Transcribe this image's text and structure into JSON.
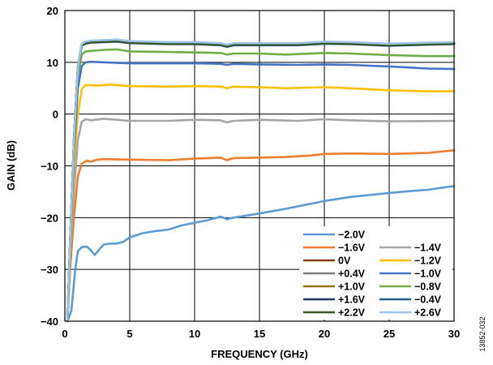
{
  "chart_data": {
    "type": "line",
    "xlabel": "FREQUENCY (GHz)",
    "ylabel": "GAIN (dB)",
    "xlim": [
      0,
      30
    ],
    "ylim": [
      -40,
      20
    ],
    "x_ticks": [
      "0",
      "5",
      "10",
      "15",
      "20",
      "25",
      "30"
    ],
    "y_ticks": [
      "20",
      "10",
      "0",
      "−10",
      "−20",
      "−30",
      "−40"
    ],
    "grid": true,
    "legend_position": "bottom-right",
    "figure_id": "13852-032",
    "series": [
      {
        "name": "−2.0V",
        "color": "#5b9bd5",
        "points": [
          [
            0.2,
            -40
          ],
          [
            0.5,
            -38
          ],
          [
            0.8,
            -30
          ],
          [
            1,
            -26.5
          ],
          [
            1.3,
            -25.7
          ],
          [
            1.7,
            -25.6
          ],
          [
            2,
            -26.3
          ],
          [
            2.3,
            -27.2
          ],
          [
            2.7,
            -26
          ],
          [
            3,
            -25.2
          ],
          [
            3.5,
            -25
          ],
          [
            4,
            -25
          ],
          [
            4.5,
            -24.7
          ],
          [
            5,
            -23.8
          ],
          [
            6,
            -23
          ],
          [
            7,
            -22.6
          ],
          [
            8,
            -22.3
          ],
          [
            9,
            -21.5
          ],
          [
            10,
            -21
          ],
          [
            11,
            -20.5
          ],
          [
            12,
            -19.8
          ],
          [
            12.5,
            -20.3
          ],
          [
            13,
            -20
          ],
          [
            14,
            -19.6
          ],
          [
            15,
            -19.2
          ],
          [
            17,
            -18.3
          ],
          [
            19,
            -17.3
          ],
          [
            20,
            -16.8
          ],
          [
            22,
            -16
          ],
          [
            24,
            -15.5
          ],
          [
            26,
            -15
          ],
          [
            28,
            -14.6
          ],
          [
            30,
            -13.9
          ]
        ]
      },
      {
        "name": "−1.6V",
        "color": "#ed7d31",
        "points": [
          [
            0.2,
            -40
          ],
          [
            0.4,
            -30
          ],
          [
            0.7,
            -20
          ],
          [
            1,
            -12
          ],
          [
            1.3,
            -9.6
          ],
          [
            1.7,
            -9
          ],
          [
            2,
            -9.2
          ],
          [
            2.5,
            -8.8
          ],
          [
            3,
            -8.7
          ],
          [
            5,
            -8.8
          ],
          [
            8,
            -8.9
          ],
          [
            10,
            -8.6
          ],
          [
            12,
            -8.4
          ],
          [
            12.5,
            -8.9
          ],
          [
            13,
            -8.5
          ],
          [
            15,
            -8.4
          ],
          [
            17,
            -8.3
          ],
          [
            19,
            -8
          ],
          [
            20,
            -7.7
          ],
          [
            22,
            -7.6
          ],
          [
            25,
            -7.7
          ],
          [
            28,
            -7.5
          ],
          [
            30,
            -7
          ]
        ]
      },
      {
        "name": "−1.4V",
        "color": "#a5a5a5",
        "points": [
          [
            0.2,
            -40
          ],
          [
            0.4,
            -28
          ],
          [
            0.7,
            -15
          ],
          [
            1,
            -5
          ],
          [
            1.3,
            -1.5
          ],
          [
            1.6,
            -1
          ],
          [
            2,
            -1.2
          ],
          [
            3,
            -0.9
          ],
          [
            5,
            -1.3
          ],
          [
            8,
            -1.3
          ],
          [
            10,
            -1.1
          ],
          [
            12,
            -1.2
          ],
          [
            12.5,
            -1.6
          ],
          [
            13,
            -1.3
          ],
          [
            15,
            -1.1
          ],
          [
            18,
            -1.3
          ],
          [
            20,
            -1
          ],
          [
            22,
            -1.2
          ],
          [
            25,
            -1.4
          ],
          [
            30,
            -1.3
          ]
        ]
      },
      {
        "name": "0V",
        "color": "#843c0c",
        "points": [
          [
            0.2,
            -40
          ],
          [
            0.4,
            -25
          ],
          [
            0.7,
            -5
          ],
          [
            1,
            9
          ],
          [
            1.3,
            13.3
          ],
          [
            1.6,
            13.7
          ],
          [
            2,
            13.9
          ],
          [
            3,
            14
          ],
          [
            4,
            14.1
          ],
          [
            5,
            13.8
          ],
          [
            8,
            13.6
          ],
          [
            10,
            13.6
          ],
          [
            12,
            13.4
          ],
          [
            12.5,
            13.1
          ],
          [
            13,
            13.4
          ],
          [
            15,
            13.4
          ],
          [
            18,
            13.4
          ],
          [
            20,
            13.7
          ],
          [
            22,
            13.6
          ],
          [
            25,
            13.3
          ],
          [
            28,
            13.5
          ],
          [
            30,
            13.6
          ]
        ]
      },
      {
        "name": "−1.2V",
        "color": "#ffc000",
        "points": [
          [
            0.2,
            -40
          ],
          [
            0.4,
            -27
          ],
          [
            0.7,
            -10
          ],
          [
            1,
            0
          ],
          [
            1.3,
            4.8
          ],
          [
            1.6,
            5.6
          ],
          [
            2,
            5.6
          ],
          [
            2.5,
            5.5
          ],
          [
            3.5,
            5.7
          ],
          [
            5,
            5.4
          ],
          [
            8,
            5.3
          ],
          [
            10,
            5.4
          ],
          [
            12,
            5.3
          ],
          [
            12.5,
            5
          ],
          [
            13,
            5.3
          ],
          [
            15,
            5.2
          ],
          [
            17,
            5
          ],
          [
            20,
            5.2
          ],
          [
            22,
            5
          ],
          [
            25,
            4.6
          ],
          [
            28,
            4.4
          ],
          [
            30,
            4.4
          ]
        ]
      },
      {
        "name": "+0.4V",
        "color": "#7f7f7f",
        "points": [
          [
            0.2,
            -40
          ],
          [
            0.4,
            -25
          ],
          [
            0.7,
            -5
          ],
          [
            1,
            9
          ],
          [
            1.3,
            13.4
          ],
          [
            1.6,
            13.8
          ],
          [
            2,
            14
          ],
          [
            3,
            14.1
          ],
          [
            4,
            14.2
          ],
          [
            5,
            13.9
          ],
          [
            8,
            13.7
          ],
          [
            10,
            13.7
          ],
          [
            12,
            13.5
          ],
          [
            12.5,
            13.2
          ],
          [
            13,
            13.5
          ],
          [
            15,
            13.5
          ],
          [
            18,
            13.5
          ],
          [
            20,
            13.8
          ],
          [
            22,
            13.7
          ],
          [
            25,
            13.4
          ],
          [
            28,
            13.6
          ],
          [
            30,
            13.7
          ]
        ]
      },
      {
        "name": "−1.0V",
        "color": "#4472c4",
        "points": [
          [
            0.2,
            -40
          ],
          [
            0.4,
            -26
          ],
          [
            0.7,
            -7
          ],
          [
            1,
            5
          ],
          [
            1.3,
            9.3
          ],
          [
            1.6,
            10
          ],
          [
            2,
            10.1
          ],
          [
            3,
            10
          ],
          [
            5,
            9.8
          ],
          [
            8,
            9.8
          ],
          [
            10,
            9.8
          ],
          [
            12,
            9.7
          ],
          [
            12.5,
            9.5
          ],
          [
            13,
            9.7
          ],
          [
            15,
            9.6
          ],
          [
            18,
            9.5
          ],
          [
            20,
            9.6
          ],
          [
            22,
            9.5
          ],
          [
            25,
            9.2
          ],
          [
            28,
            8.8
          ],
          [
            30,
            8.7
          ]
        ]
      },
      {
        "name": "+1.0V",
        "color": "#997300",
        "points": [
          [
            0.2,
            -40
          ],
          [
            0.4,
            -25
          ],
          [
            0.7,
            -5
          ],
          [
            1,
            9
          ],
          [
            1.3,
            13.5
          ],
          [
            1.6,
            13.9
          ],
          [
            2,
            14.1
          ],
          [
            3,
            14.2
          ],
          [
            4,
            14.3
          ],
          [
            5,
            14
          ],
          [
            8,
            13.8
          ],
          [
            10,
            13.8
          ],
          [
            12,
            13.6
          ],
          [
            12.5,
            13.3
          ],
          [
            13,
            13.6
          ],
          [
            15,
            13.6
          ],
          [
            18,
            13.6
          ],
          [
            20,
            13.9
          ],
          [
            22,
            13.8
          ],
          [
            25,
            13.5
          ],
          [
            28,
            13.7
          ],
          [
            30,
            13.8
          ]
        ]
      },
      {
        "name": "−0.8V",
        "color": "#70ad47",
        "points": [
          [
            0.2,
            -40
          ],
          [
            0.4,
            -25
          ],
          [
            0.7,
            -5
          ],
          [
            1,
            7.5
          ],
          [
            1.3,
            11.5
          ],
          [
            1.6,
            12.1
          ],
          [
            2,
            12.2
          ],
          [
            3,
            12.4
          ],
          [
            4,
            12.5
          ],
          [
            5,
            12.1
          ],
          [
            8,
            12
          ],
          [
            10,
            11.9
          ],
          [
            12,
            11.8
          ],
          [
            12.5,
            11.5
          ],
          [
            13,
            11.7
          ],
          [
            15,
            11.7
          ],
          [
            17,
            11.5
          ],
          [
            20,
            11.8
          ],
          [
            22,
            11.7
          ],
          [
            25,
            11.4
          ],
          [
            28,
            11.2
          ],
          [
            30,
            11.2
          ]
        ]
      },
      {
        "name": "+1.6V",
        "color": "#203864",
        "points": [
          [
            0.2,
            -40
          ],
          [
            0.4,
            -25
          ],
          [
            0.7,
            -5
          ],
          [
            1,
            9
          ],
          [
            1.3,
            13.4
          ],
          [
            1.6,
            13.8
          ],
          [
            2,
            14
          ],
          [
            3,
            14.1
          ],
          [
            4,
            14.2
          ],
          [
            5,
            13.9
          ],
          [
            8,
            13.7
          ],
          [
            10,
            13.7
          ],
          [
            12,
            13.5
          ],
          [
            12.5,
            13.2
          ],
          [
            13,
            13.5
          ],
          [
            15,
            13.5
          ],
          [
            18,
            13.5
          ],
          [
            20,
            13.8
          ],
          [
            22,
            13.7
          ],
          [
            25,
            13.4
          ],
          [
            28,
            13.6
          ],
          [
            30,
            13.7
          ]
        ]
      },
      {
        "name": "−0.4V",
        "color": "#255e91",
        "points": [
          [
            0.2,
            -40
          ],
          [
            0.4,
            -25
          ],
          [
            0.7,
            -5
          ],
          [
            1,
            9
          ],
          [
            1.3,
            13.2
          ],
          [
            1.6,
            13.6
          ],
          [
            2,
            13.8
          ],
          [
            3,
            13.9
          ],
          [
            4,
            14
          ],
          [
            5,
            13.7
          ],
          [
            8,
            13.5
          ],
          [
            10,
            13.5
          ],
          [
            12,
            13.3
          ],
          [
            12.5,
            13
          ],
          [
            13,
            13.3
          ],
          [
            15,
            13.3
          ],
          [
            18,
            13.3
          ],
          [
            20,
            13.6
          ],
          [
            22,
            13.5
          ],
          [
            25,
            13.2
          ],
          [
            28,
            13.4
          ],
          [
            30,
            13.5
          ]
        ]
      },
      {
        "name": "+2.2V",
        "color": "#375623",
        "points": [
          [
            0.2,
            -40
          ],
          [
            0.4,
            -25
          ],
          [
            0.7,
            -5
          ],
          [
            1,
            9
          ],
          [
            1.3,
            13.3
          ],
          [
            1.6,
            13.7
          ],
          [
            2,
            13.9
          ],
          [
            3,
            14
          ],
          [
            4,
            14.1
          ],
          [
            5,
            13.8
          ],
          [
            8,
            13.6
          ],
          [
            10,
            13.6
          ],
          [
            12,
            13.4
          ],
          [
            12.5,
            13.1
          ],
          [
            13,
            13.4
          ],
          [
            15,
            13.4
          ],
          [
            18,
            13.4
          ],
          [
            20,
            13.7
          ],
          [
            22,
            13.6
          ],
          [
            25,
            13.3
          ],
          [
            28,
            13.5
          ],
          [
            30,
            13.6
          ]
        ]
      },
      {
        "name": "+2.6V",
        "color": "#9dc3e6",
        "points": [
          [
            0.2,
            -40
          ],
          [
            0.4,
            -25
          ],
          [
            0.7,
            -5
          ],
          [
            1,
            9
          ],
          [
            1.3,
            13.6
          ],
          [
            1.6,
            14
          ],
          [
            2,
            14.2
          ],
          [
            3,
            14.3
          ],
          [
            4,
            14.4
          ],
          [
            5,
            14.1
          ],
          [
            8,
            13.9
          ],
          [
            10,
            13.9
          ],
          [
            12,
            13.7
          ],
          [
            12.5,
            13.4
          ],
          [
            13,
            13.7
          ],
          [
            15,
            13.7
          ],
          [
            18,
            13.7
          ],
          [
            20,
            14
          ],
          [
            22,
            13.9
          ],
          [
            25,
            13.6
          ],
          [
            28,
            13.8
          ],
          [
            30,
            13.9
          ]
        ]
      }
    ]
  }
}
